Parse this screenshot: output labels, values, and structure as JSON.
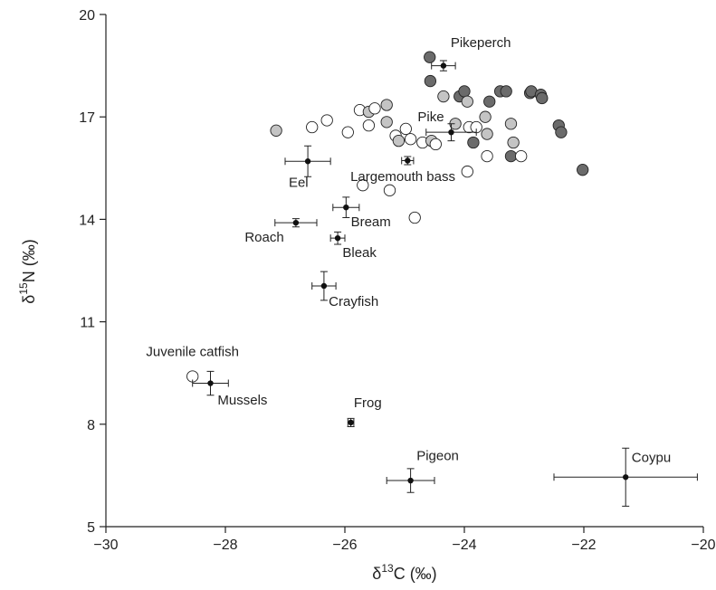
{
  "chart_data": {
    "type": "scatter",
    "title": "",
    "xlabel": {
      "prefix": "δ",
      "sup": "13",
      "suffix": "C (‰)"
    },
    "ylabel": {
      "prefix": "δ",
      "sup": "15",
      "suffix": "N (‰)"
    },
    "xlim": [
      -30,
      -20
    ],
    "ylim": [
      5,
      20
    ],
    "xticks": [
      -30,
      -28,
      -26,
      -24,
      -22,
      -20
    ],
    "yticks": [
      5,
      8,
      11,
      14,
      17,
      20
    ],
    "xtick_labels": [
      "−30",
      "−28",
      "−26",
      "−24",
      "−22",
      "−20"
    ],
    "ytick_labels": [
      "5",
      "8",
      "11",
      "14",
      "17",
      "20"
    ],
    "grid": false,
    "colors": {
      "white": "#ffffff",
      "light_grey": "#c4c4c4",
      "dark_grey": "#6b6b6b",
      "mean": "#111111",
      "stroke": "#222222"
    },
    "individual_points": [
      {
        "x": -27.15,
        "y": 16.6,
        "shade": "light_grey"
      },
      {
        "x": -26.55,
        "y": 16.7,
        "shade": "white"
      },
      {
        "x": -26.3,
        "y": 16.9,
        "shade": "white"
      },
      {
        "x": -25.95,
        "y": 16.55,
        "shade": "white"
      },
      {
        "x": -25.75,
        "y": 17.2,
        "shade": "white"
      },
      {
        "x": -25.6,
        "y": 17.15,
        "shade": "light_grey"
      },
      {
        "x": -25.5,
        "y": 17.25,
        "shade": "white"
      },
      {
        "x": -25.6,
        "y": 16.75,
        "shade": "white"
      },
      {
        "x": -25.3,
        "y": 17.35,
        "shade": "light_grey"
      },
      {
        "x": -25.3,
        "y": 16.85,
        "shade": "light_grey"
      },
      {
        "x": -25.15,
        "y": 16.45,
        "shade": "white"
      },
      {
        "x": -25.1,
        "y": 16.3,
        "shade": "light_grey"
      },
      {
        "x": -24.98,
        "y": 16.65,
        "shade": "white"
      },
      {
        "x": -24.9,
        "y": 16.35,
        "shade": "white"
      },
      {
        "x": -25.7,
        "y": 15.0,
        "shade": "white"
      },
      {
        "x": -25.25,
        "y": 14.85,
        "shade": "white"
      },
      {
        "x": -24.83,
        "y": 14.05,
        "shade": "white"
      },
      {
        "x": -24.7,
        "y": 16.25,
        "shade": "white"
      },
      {
        "x": -24.55,
        "y": 16.3,
        "shade": "light_grey"
      },
      {
        "x": -24.48,
        "y": 16.2,
        "shade": "white"
      },
      {
        "x": -24.35,
        "y": 17.6,
        "shade": "light_grey"
      },
      {
        "x": -24.15,
        "y": 16.8,
        "shade": "light_grey"
      },
      {
        "x": -24.08,
        "y": 17.6,
        "shade": "dark_grey"
      },
      {
        "x": -24.0,
        "y": 17.75,
        "shade": "dark_grey"
      },
      {
        "x": -23.95,
        "y": 17.45,
        "shade": "light_grey"
      },
      {
        "x": -23.92,
        "y": 16.7,
        "shade": "white"
      },
      {
        "x": -23.85,
        "y": 16.25,
        "shade": "dark_grey"
      },
      {
        "x": -23.8,
        "y": 16.7,
        "shade": "white"
      },
      {
        "x": -23.65,
        "y": 17.0,
        "shade": "light_grey"
      },
      {
        "x": -23.62,
        "y": 16.5,
        "shade": "light_grey"
      },
      {
        "x": -23.58,
        "y": 17.45,
        "shade": "dark_grey"
      },
      {
        "x": -23.62,
        "y": 15.85,
        "shade": "white"
      },
      {
        "x": -23.95,
        "y": 15.4,
        "shade": "white"
      },
      {
        "x": -23.4,
        "y": 17.75,
        "shade": "dark_grey"
      },
      {
        "x": -23.3,
        "y": 17.75,
        "shade": "dark_grey"
      },
      {
        "x": -23.22,
        "y": 16.8,
        "shade": "light_grey"
      },
      {
        "x": -23.18,
        "y": 16.25,
        "shade": "light_grey"
      },
      {
        "x": -23.22,
        "y": 15.85,
        "shade": "dark_grey"
      },
      {
        "x": -23.05,
        "y": 15.85,
        "shade": "white"
      },
      {
        "x": -22.9,
        "y": 17.7,
        "shade": "dark_grey"
      },
      {
        "x": -22.88,
        "y": 17.75,
        "shade": "dark_grey"
      },
      {
        "x": -22.72,
        "y": 17.65,
        "shade": "dark_grey"
      },
      {
        "x": -22.7,
        "y": 17.55,
        "shade": "dark_grey"
      },
      {
        "x": -22.42,
        "y": 16.75,
        "shade": "dark_grey"
      },
      {
        "x": -22.38,
        "y": 16.55,
        "shade": "dark_grey"
      },
      {
        "x": -22.02,
        "y": 15.45,
        "shade": "dark_grey"
      },
      {
        "x": -24.58,
        "y": 18.75,
        "shade": "dark_grey"
      },
      {
        "x": -24.57,
        "y": 18.05,
        "shade": "dark_grey"
      },
      {
        "x": -28.55,
        "y": 9.4,
        "shade": "white"
      }
    ],
    "group_means": [
      {
        "name": "Pikeperch",
        "x": -24.35,
        "y": 18.5,
        "xerr": 0.2,
        "yerr": 0.15,
        "label_dx": 0.12,
        "label_dy": 0.55,
        "anchor": "start"
      },
      {
        "name": "Pike",
        "x": -24.22,
        "y": 16.55,
        "xerr": 0.42,
        "yerr": 0.25,
        "label_dx": -0.12,
        "label_dy": 0.32,
        "anchor": "end"
      },
      {
        "name": "Eel",
        "x": -26.62,
        "y": 15.7,
        "xerr": 0.38,
        "yerr": 0.45,
        "label_dx": -0.32,
        "label_dy": -0.75,
        "anchor": "start"
      },
      {
        "name": "Largemouth bass",
        "x": -24.95,
        "y": 15.72,
        "xerr": 0.1,
        "yerr": 0.12,
        "label_dx": -0.08,
        "label_dy": -0.6,
        "anchor": "middle"
      },
      {
        "name": "Bream",
        "x": -25.98,
        "y": 14.35,
        "xerr": 0.22,
        "yerr": 0.3,
        "label_dx": 0.08,
        "label_dy": -0.55,
        "anchor": "start"
      },
      {
        "name": "Roach",
        "x": -26.82,
        "y": 13.9,
        "xerr": 0.35,
        "yerr": 0.12,
        "label_dx": -0.2,
        "label_dy": -0.55,
        "anchor": "end"
      },
      {
        "name": "Bleak",
        "x": -26.12,
        "y": 13.45,
        "xerr": 0.12,
        "yerr": 0.18,
        "label_dx": 0.08,
        "label_dy": -0.55,
        "anchor": "start"
      },
      {
        "name": "Crayfish",
        "x": -26.35,
        "y": 12.05,
        "xerr": 0.2,
        "yerr": 0.42,
        "label_dx": 0.08,
        "label_dy": -0.58,
        "anchor": "start"
      },
      {
        "name": "Juvenile catfish",
        "x": -28.55,
        "y": 9.4,
        "xerr": 0,
        "yerr": 0,
        "label_dx": 0.0,
        "label_dy": 0.6,
        "anchor": "middle",
        "no_marker": true
      },
      {
        "name": "Mussels",
        "x": -28.25,
        "y": 9.2,
        "xerr": 0.3,
        "yerr": 0.35,
        "label_dx": 0.12,
        "label_dy": -0.62,
        "anchor": "start"
      },
      {
        "name": "Frog",
        "x": -25.9,
        "y": 8.05,
        "xerr": 0.05,
        "yerr": 0.12,
        "label_dx": 0.05,
        "label_dy": 0.45,
        "anchor": "start"
      },
      {
        "name": "Pigeon",
        "x": -24.9,
        "y": 6.35,
        "xerr": 0.4,
        "yerr": 0.35,
        "label_dx": 0.1,
        "label_dy": 0.6,
        "anchor": "start"
      },
      {
        "name": "Coypu",
        "x": -21.3,
        "y": 6.45,
        "xerr": 1.2,
        "yerr": 0.85,
        "label_dx": 0.1,
        "label_dy": 0.45,
        "anchor": "start"
      }
    ]
  }
}
